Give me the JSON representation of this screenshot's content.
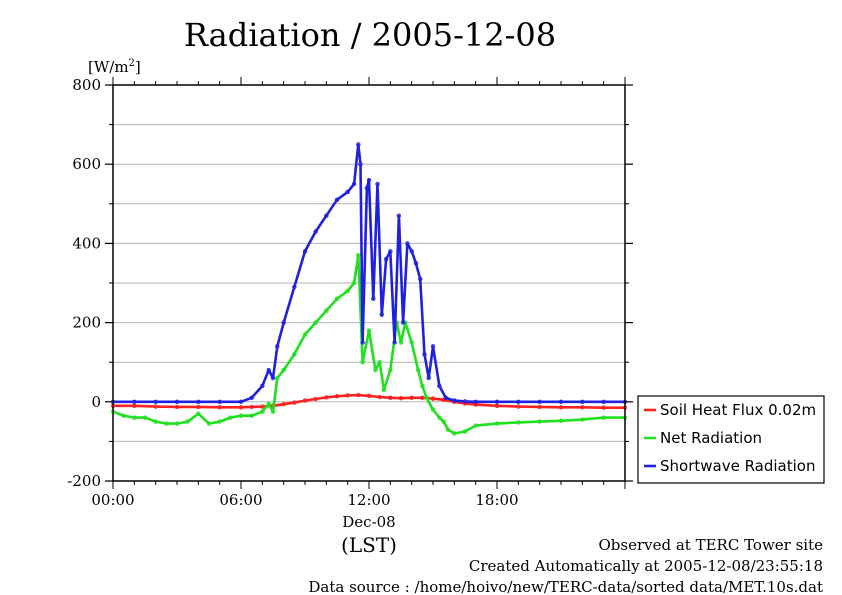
{
  "chart_data": {
    "type": "line",
    "title": "Radiation / 2005-12-08",
    "yunit": "[W/m",
    "yunit_sup": "2",
    "yunit_close": "]",
    "ylim": [
      -200,
      800
    ],
    "yticks": [
      -200,
      0,
      200,
      400,
      600,
      800
    ],
    "ytick_labels": [
      "-200",
      "0",
      "200",
      "400",
      "600",
      "800"
    ],
    "xlim_hours": [
      0,
      24
    ],
    "xticks": [
      {
        "hour": 0,
        "label": "00:00"
      },
      {
        "hour": 6,
        "label": "06:00"
      },
      {
        "hour": 12,
        "label": "12:00"
      },
      {
        "hour": 18,
        "label": "18:00"
      }
    ],
    "date_label": "Dec-08",
    "xlabel": "(LST)",
    "grid": true,
    "legend_position": "right",
    "series": [
      {
        "name": "Soil Heat Flux 0.02m",
        "color": "#ff2020",
        "x": [
          0,
          1,
          2,
          3,
          4,
          5,
          6,
          6.5,
          7,
          7.5,
          8,
          8.5,
          9,
          9.5,
          10,
          10.5,
          11,
          11.5,
          12,
          12.5,
          13,
          13.5,
          14,
          14.5,
          15,
          15.5,
          16,
          16.5,
          17,
          18,
          19,
          20,
          21,
          22,
          23,
          24
        ],
        "y": [
          -10,
          -10,
          -12,
          -13,
          -13,
          -14,
          -14,
          -13,
          -12,
          -10,
          -6,
          -2,
          3,
          7,
          11,
          14,
          16,
          17,
          15,
          12,
          10,
          9,
          10,
          10,
          8,
          5,
          0,
          -4,
          -7,
          -10,
          -12,
          -13,
          -14,
          -14,
          -15,
          -15
        ]
      },
      {
        "name": "Net Radiation",
        "color": "#20e020",
        "x": [
          0,
          0.5,
          1,
          1.5,
          2,
          2.5,
          3,
          3.5,
          4,
          4.5,
          5,
          5.5,
          6,
          6.5,
          7,
          7.3,
          7.5,
          7.7,
          8,
          8.5,
          9,
          9.5,
          10,
          10.5,
          11,
          11.3,
          11.5,
          11.7,
          12,
          12.3,
          12.5,
          12.7,
          13,
          13.3,
          13.5,
          13.7,
          14,
          14.3,
          14.5,
          14.7,
          15,
          15.3,
          15.5,
          15.7,
          16,
          16.5,
          17,
          18,
          19,
          20,
          21,
          22,
          23,
          24
        ],
        "y": [
          -25,
          -35,
          -40,
          -40,
          -50,
          -55,
          -55,
          -50,
          -30,
          -55,
          -50,
          -40,
          -35,
          -35,
          -25,
          -5,
          -25,
          60,
          80,
          120,
          170,
          200,
          230,
          260,
          280,
          300,
          370,
          100,
          180,
          80,
          100,
          30,
          80,
          200,
          150,
          200,
          150,
          80,
          40,
          10,
          -20,
          -40,
          -50,
          -70,
          -80,
          -75,
          -60,
          -55,
          -52,
          -50,
          -48,
          -45,
          -40,
          -40
        ]
      },
      {
        "name": "Shortwave Radiation",
        "color": "#2020e0",
        "x": [
          0,
          1,
          2,
          3,
          4,
          5,
          6,
          6.5,
          7,
          7.3,
          7.5,
          7.7,
          8,
          8.5,
          9,
          9.5,
          10,
          10.5,
          11,
          11.3,
          11.5,
          11.6,
          11.7,
          11.9,
          12,
          12.2,
          12.4,
          12.6,
          12.8,
          13,
          13.2,
          13.4,
          13.6,
          13.8,
          14,
          14.2,
          14.4,
          14.6,
          14.8,
          15,
          15.3,
          15.6,
          16,
          16.5,
          17,
          18,
          19,
          20,
          21,
          22,
          23,
          24
        ],
        "y": [
          0,
          0,
          0,
          0,
          0,
          0,
          0,
          10,
          40,
          80,
          60,
          140,
          200,
          290,
          380,
          430,
          470,
          510,
          530,
          550,
          650,
          600,
          150,
          540,
          560,
          260,
          550,
          220,
          360,
          380,
          150,
          470,
          200,
          400,
          380,
          350,
          310,
          120,
          60,
          140,
          40,
          10,
          3,
          1,
          0,
          0,
          0,
          0,
          0,
          0,
          0,
          0
        ]
      }
    ]
  },
  "footer": {
    "line1": "Observed at TERC Tower site",
    "line2": "Created Automatically at 2005-12-08/23:55:18",
    "line3": "Data source : /home/hoivo/new/TERC-data/sorted  data/MET.10s.dat"
  }
}
